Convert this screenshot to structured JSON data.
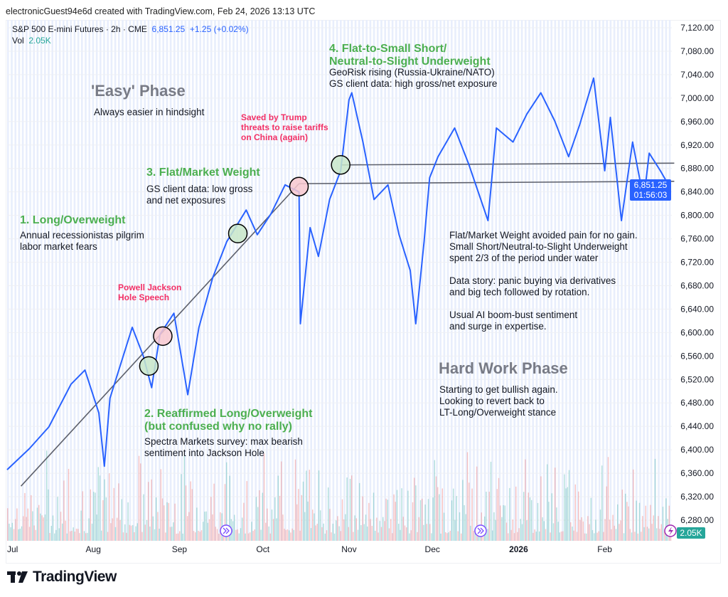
{
  "credit": "electronicGuest94e6d created with TradingView.com, Feb 24, 2026 13:13 UTC",
  "legend": {
    "symbol": "S&P 500 E-mini Futures · 2h · CME",
    "price": "6,851.25",
    "change": "+1.25 (+0.02%)",
    "vol_label": "Vol",
    "vol_value": "2.05K"
  },
  "price_tag": {
    "price": "6,851.25",
    "countdown": "01:56:03"
  },
  "vol_tag": "2.05K",
  "logo": "TradingView",
  "colors": {
    "line": "#2962ff",
    "green": "#4caf50",
    "pink": "#f23066",
    "vol_up": "#26a69a",
    "vol_down": "#ef5350"
  },
  "annotations": {
    "phase_easy": "'Easy' Phase",
    "phase_easy_sub": "Always easier in hindsight",
    "phase_hard": "Hard Work Phase",
    "phase_hard_sub": [
      "Starting to get bullish again.",
      "Looking to revert back to",
      "LT-Long/Overweight stance"
    ],
    "s1_title": "1. Long/Overweight",
    "s1_text": [
      "Annual recessionistas pilgrim",
      "labor market fears"
    ],
    "s2_title": [
      "2. Reaffirmed Long/Overweight",
      "(but confused why no rally)"
    ],
    "s2_text": [
      "Spectra Markets survey: max bearish",
      "sentiment into Jackson Hole"
    ],
    "s3_title": "3. Flat/Market Weight",
    "s3_text": [
      "GS client data: low gross",
      "and net exposures"
    ],
    "s4_title": [
      "4. Flat-to-Small Short/",
      "Neutral-to-Slight Underweight"
    ],
    "s4_text": [
      "GeoRisk rising (Russia-Ukraine/NATO)",
      "GS client data: high gross/net exposure"
    ],
    "powell": [
      "Powell Jackson",
      "Hole Speech"
    ],
    "trump": [
      "Saved by Trump",
      "threats to raise tariffs",
      "on China (again)"
    ],
    "summary": [
      "Flat/Market Weight avoided pain for no gain.",
      "Small Short/Neutral-to-Slight Underweight",
      "spent 2/3 of the period under water",
      "",
      "Data story: panic buying via derivatives",
      "and big tech followed by rotation.",
      "",
      "Usual AI boom-bust sentiment",
      "and surge in expertise."
    ]
  },
  "chart_data": {
    "type": "line",
    "title": "S&P 500 E-mini Futures · 2h · CME",
    "xlabel": "",
    "ylabel": "",
    "x_unit": "days since Jul 1 2025",
    "xlim": [
      0,
      240
    ],
    "ylim": [
      6260,
      7140
    ],
    "y_ticks": [
      6280,
      6320,
      6360,
      6400,
      6440,
      6480,
      6520,
      6560,
      6600,
      6640,
      6680,
      6720,
      6760,
      6800,
      6840,
      6880,
      6920,
      6960,
      7000,
      7040,
      7080,
      7120
    ],
    "y_tick_labels": [
      "6,280.00",
      "6,320.00",
      "6,360.00",
      "6,400.00",
      "6,440.00",
      "6,480.00",
      "6,520.00",
      "6,560.00",
      "6,600.00",
      "6,640.00",
      "6,680.00",
      "6,720.00",
      "6,760.00",
      "6,800.00",
      "6,840.00",
      "6,880.00",
      "6,920.00",
      "6,960.00",
      "7,000.00",
      "7,040.00",
      "7,080.00",
      "7,120.00"
    ],
    "x_ticks": [
      {
        "day": 0,
        "label": "Jul"
      },
      {
        "day": 31,
        "label": "Aug"
      },
      {
        "day": 62,
        "label": "Sep"
      },
      {
        "day": 92,
        "label": "Oct"
      },
      {
        "day": 123,
        "label": "Nov"
      },
      {
        "day": 153,
        "label": "Dec"
      },
      {
        "day": 184,
        "label": "2026",
        "bold": true
      },
      {
        "day": 215,
        "label": "Feb"
      }
    ],
    "series": [
      {
        "name": "S&P 500 E-mini Futures",
        "x": [
          0,
          8,
          15,
          23,
          28,
          33,
          35,
          37,
          45,
          49,
          52,
          55,
          60,
          65,
          69,
          74,
          79,
          86,
          90,
          95,
          100,
          105,
          105.5,
          109,
          112,
          116,
          120,
          123,
          124,
          128,
          132,
          137,
          141,
          145,
          147,
          150,
          152,
          155,
          161,
          166,
          173,
          176,
          182,
          187,
          192,
          197,
          202,
          206,
          211,
          215,
          217,
          221,
          225,
          229,
          231,
          235,
          238
        ],
        "values": [
          6366,
          6402,
          6439,
          6512,
          6536,
          6463,
          6372,
          6488,
          6609,
          6560,
          6506,
          6597,
          6633,
          6494,
          6609,
          6694,
          6755,
          6809,
          6767,
          6803,
          6852,
          6840,
          6615,
          6779,
          6730,
          6827,
          6876,
          6997,
          7009,
          6925,
          6827,
          6852,
          6767,
          6706,
          6615,
          6755,
          6864,
          6900,
          6949,
          6888,
          6791,
          6949,
          6925,
          6973,
          7009,
          6961,
          6900,
          6955,
          7034,
          6876,
          6967,
          6791,
          6925,
          6827,
          6906,
          6876,
          6851.25
        ]
      }
    ],
    "trendlines": [
      {
        "name": "uptrend",
        "from": [
          5,
          6338
        ],
        "to": [
          105,
          6854
        ]
      },
      {
        "name": "level-1",
        "from": [
          105,
          6854
        ],
        "to": [
          240,
          6858
        ]
      },
      {
        "name": "level-2",
        "from": [
          120,
          6886
        ],
        "to": [
          240,
          6889
        ]
      }
    ],
    "markers": [
      {
        "day": 51,
        "price": 6543,
        "color": "green"
      },
      {
        "day": 56,
        "price": 6594,
        "color": "pink"
      },
      {
        "day": 83,
        "price": 6769,
        "color": "green"
      },
      {
        "day": 105,
        "price": 6849,
        "color": "pink"
      },
      {
        "day": 120,
        "price": 6886,
        "color": "green"
      }
    ],
    "last_price": 6851.25
  }
}
